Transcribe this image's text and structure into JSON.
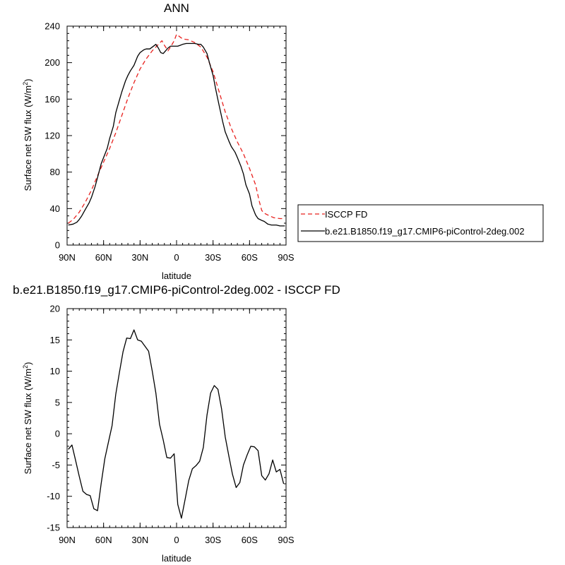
{
  "colors": {
    "isccp_line": "#e8221f",
    "model_line": "#000000",
    "background": "#ffffff"
  },
  "legend": {
    "entries": [
      "ISCCP FD",
      "b.e21.B1850.f19_g17.CMIP6-piControl-2deg.002"
    ]
  },
  "chart_data": [
    {
      "type": "line",
      "title": "ANN",
      "xlabel": "latitude",
      "ylabel": "Surface net SW flux (W/m²)",
      "xlim": [
        -90,
        90
      ],
      "ylim": [
        0,
        240
      ],
      "xticks": [
        -90,
        -60,
        -30,
        0,
        30,
        60,
        90
      ],
      "xtick_labels": [
        "90N",
        "60N",
        "30N",
        "0",
        "30S",
        "60S",
        "90S"
      ],
      "yticks": [
        0,
        40,
        80,
        120,
        160,
        200,
        240
      ],
      "ytick_labels": [
        "0",
        "40",
        "80",
        "120",
        "160",
        "200",
        "240"
      ],
      "legend_position": "right",
      "series": [
        {
          "name": "ISCCP FD",
          "style": "dashed",
          "x": [
            -89,
            -85,
            -80,
            -75,
            -70,
            -65,
            -60,
            -55,
            -50,
            -45,
            -40,
            -35,
            -30,
            -25,
            -20,
            -15,
            -12,
            -10,
            -7,
            -5,
            -2,
            0,
            2,
            5,
            10,
            15,
            20,
            25,
            30,
            35,
            40,
            45,
            50,
            55,
            60,
            65,
            68,
            70,
            72,
            75,
            80,
            85,
            89
          ],
          "y": [
            24,
            28,
            36,
            47,
            60,
            76,
            91,
            106,
            123,
            142,
            161,
            178,
            193,
            204,
            213,
            220,
            224,
            219,
            213,
            217,
            224,
            231,
            229,
            226,
            225,
            222,
            217,
            206,
            190,
            168,
            146,
            128,
            113,
            100,
            84,
            66,
            48,
            38,
            35,
            33,
            30,
            29,
            29
          ]
        },
        {
          "name": "b.e21.B1850.f19_g17.CMIP6-piControl-2deg.002",
          "style": "solid",
          "x": [
            -89,
            -85,
            -82,
            -80,
            -78,
            -75,
            -72,
            -70,
            -67,
            -65,
            -62,
            -60,
            -57,
            -55,
            -52,
            -50,
            -47,
            -45,
            -42,
            -40,
            -38,
            -35,
            -32,
            -30,
            -27,
            -25,
            -22,
            -20,
            -17,
            -15,
            -13,
            -11,
            -9,
            -7,
            -5,
            -3,
            -1,
            1,
            3,
            5,
            8,
            10,
            13,
            15,
            18,
            20,
            22,
            25,
            27,
            30,
            32,
            35,
            38,
            40,
            43,
            45,
            48,
            50,
            53,
            55,
            57,
            60,
            62,
            65,
            67,
            70,
            72,
            75,
            78,
            80,
            82,
            85,
            89
          ],
          "y": [
            22,
            23,
            25,
            28,
            32,
            39,
            46,
            52,
            64,
            74,
            89,
            96,
            106,
            117,
            130,
            145,
            159,
            168,
            180,
            186,
            191,
            197,
            207,
            211,
            214,
            215,
            215,
            217,
            220,
            216,
            211,
            210,
            213,
            216,
            218,
            218,
            218,
            218,
            219,
            220,
            221,
            221,
            221,
            221,
            220,
            220,
            217,
            210,
            200,
            186,
            172,
            153,
            135,
            124,
            114,
            108,
            102,
            96,
            86,
            78,
            66,
            56,
            43,
            33,
            29,
            27,
            26,
            23,
            22,
            22,
            22,
            21,
            21
          ]
        }
      ]
    },
    {
      "type": "line",
      "title": "b.e21.B1850.f19_g17.CMIP6-piControl-2deg.002 - ISCCP FD",
      "xlabel": "latitude",
      "ylabel": "Surface net SW flux (W/m²)",
      "xlim": [
        -90,
        90
      ],
      "ylim": [
        -15,
        20
      ],
      "xticks": [
        -90,
        -60,
        -30,
        0,
        30,
        60,
        90
      ],
      "xtick_labels": [
        "90N",
        "60N",
        "30N",
        "0",
        "30S",
        "60S",
        "90S"
      ],
      "yticks": [
        -15,
        -10,
        -5,
        0,
        5,
        10,
        15,
        20
      ],
      "ytick_labels": [
        "-15",
        "-10",
        "-5",
        "0",
        "5",
        "10",
        "15",
        "20"
      ],
      "series": [
        {
          "name": "b.e21.B1850.f19_g17.CMIP6-piControl-2deg.002 - ISCCP FD",
          "style": "solid",
          "x": [
            -89,
            -86,
            -83,
            -80,
            -77,
            -74,
            -71,
            -68,
            -65,
            -62,
            -59,
            -56,
            -53,
            -50,
            -47,
            -44,
            -41,
            -38,
            -35,
            -32,
            -29,
            -26,
            -23,
            -20,
            -17,
            -14,
            -11,
            -8,
            -5,
            -2,
            1,
            4,
            7,
            10,
            13,
            16,
            19,
            22,
            25,
            28,
            31,
            34,
            37,
            40,
            43,
            46,
            49,
            52,
            55,
            58,
            61,
            64,
            67,
            70,
            73,
            76,
            79,
            82,
            85,
            88
          ],
          "y": [
            -2.5,
            -1.8,
            -4.3,
            -6.8,
            -9.2,
            -9.7,
            -9.9,
            -12.0,
            -12.3,
            -8.0,
            -4.0,
            -1.3,
            1.3,
            6.3,
            9.8,
            13.1,
            15.3,
            15.2,
            16.6,
            15.0,
            14.8,
            14.0,
            13.2,
            10.0,
            6.5,
            1.5,
            -1.0,
            -3.8,
            -3.9,
            -3.2,
            -11.3,
            -13.5,
            -10.5,
            -7.5,
            -5.6,
            -5.1,
            -4.4,
            -2.2,
            3.0,
            6.5,
            7.7,
            7.1,
            4.0,
            -0.5,
            -3.6,
            -6.5,
            -8.6,
            -7.8,
            -5.0,
            -3.4,
            -2.0,
            -2.1,
            -2.7,
            -6.7,
            -7.4,
            -6.4,
            -4.2,
            -6.1,
            -5.7,
            -8.0
          ]
        }
      ]
    }
  ]
}
